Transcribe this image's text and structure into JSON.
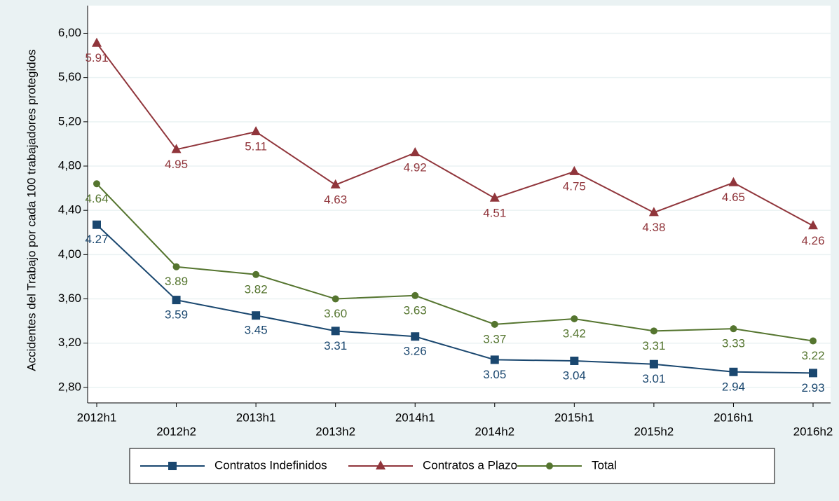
{
  "chart_data": {
    "type": "line",
    "y_label": "Accidentes del Trabajo por cada 100 trabajadores protegidos",
    "categories": [
      "2012h1",
      "2012h2",
      "2013h1",
      "2013h2",
      "2014h1",
      "2014h2",
      "2015h1",
      "2015h2",
      "2016h1",
      "2016h2"
    ],
    "series": [
      {
        "name": "Contratos Indefinidos",
        "color": "#1a476f",
        "marker": "square",
        "values": [
          4.27,
          3.59,
          3.45,
          3.31,
          3.26,
          3.05,
          3.04,
          3.01,
          2.94,
          2.93
        ],
        "value_labels": [
          "4.27",
          "3.59",
          "3.45",
          "3.31",
          "3.26",
          "3.05",
          "3.04",
          "3.01",
          "2.94",
          "2.93"
        ]
      },
      {
        "name": "Contratos a Plazo",
        "color": "#90353b",
        "marker": "triangle",
        "values": [
          5.91,
          4.95,
          5.11,
          4.63,
          4.92,
          4.51,
          4.75,
          4.38,
          4.65,
          4.26
        ],
        "value_labels": [
          "5.91",
          "4.95",
          "5.11",
          "4.63",
          "4.92",
          "4.51",
          "4.75",
          "4.38",
          "4.65",
          "4.26"
        ]
      },
      {
        "name": "Total",
        "color": "#55752f",
        "marker": "circle",
        "values": [
          4.64,
          3.89,
          3.82,
          3.6,
          3.63,
          3.37,
          3.42,
          3.31,
          3.33,
          3.22
        ],
        "value_labels": [
          "4.64",
          "3.89",
          "3.82",
          "3.60",
          "3.63",
          "3.37",
          "3.42",
          "3.31",
          "3.33",
          "3.22"
        ]
      }
    ],
    "ylim": [
      2.66,
      6.06
    ],
    "yticks": [
      {
        "value": 2.8,
        "label": "2,80"
      },
      {
        "value": 3.2,
        "label": "3,20"
      },
      {
        "value": 3.6,
        "label": "3,60"
      },
      {
        "value": 4.0,
        "label": "4,00"
      },
      {
        "value": 4.4,
        "label": "4,40"
      },
      {
        "value": 4.8,
        "label": "4,80"
      },
      {
        "value": 5.2,
        "label": "5,20"
      },
      {
        "value": 5.6,
        "label": "5,60"
      },
      {
        "value": 6.0,
        "label": "6,00"
      }
    ],
    "grid": true,
    "legend": "bottom"
  }
}
